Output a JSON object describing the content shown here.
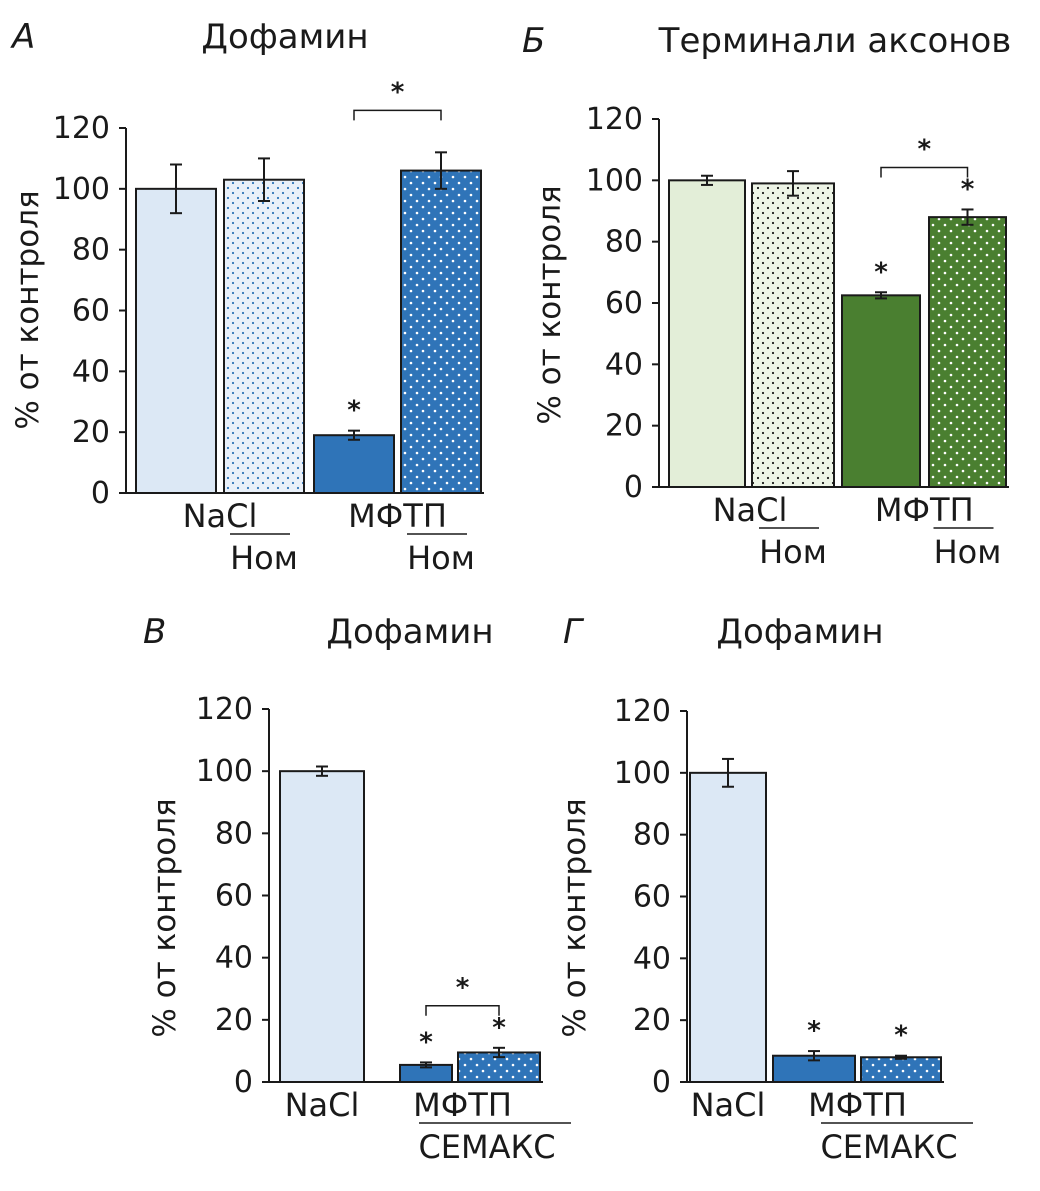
{
  "colors": {
    "axis": "#1a1a1a",
    "blue_light": "#dce8f5",
    "blue_dark": "#2f74b8",
    "green_light": "#e3eed8",
    "green_dark": "#4a7f30"
  },
  "chart_data": [
    {
      "type": "bar",
      "panel_label": "А",
      "title": "Дофамин",
      "ylabel": "% от контроля",
      "ylim": [
        0,
        120
      ],
      "yticks": [
        0,
        20,
        40,
        60,
        80,
        100,
        120
      ],
      "palette": "blue",
      "bars": [
        {
          "value": 100,
          "error": 8,
          "shade": "light",
          "pattern": false,
          "star": false
        },
        {
          "value": 103,
          "error": 7,
          "shade": "light",
          "pattern": true,
          "star": false
        },
        {
          "value": 19,
          "error": 1.5,
          "shade": "dark",
          "pattern": false,
          "star": true
        },
        {
          "value": 106,
          "error": 6,
          "shade": "dark",
          "pattern": true,
          "star": false
        }
      ],
      "brackets": [
        {
          "from": 2,
          "to": 3,
          "label": "*"
        }
      ],
      "group_labels": [
        {
          "text": "NaCl",
          "bars": [
            0,
            1
          ]
        },
        {
          "text": "МФТП",
          "bars": [
            2,
            3
          ]
        }
      ],
      "sub_labels": [
        {
          "text": "Ном",
          "bar": 1
        },
        {
          "text": "Ном",
          "bar": 3
        }
      ]
    },
    {
      "type": "bar",
      "panel_label": "Б",
      "title": "Терминали аксонов",
      "ylabel": "% от контроля",
      "ylim": [
        0,
        120
      ],
      "yticks": [
        0,
        20,
        40,
        60,
        80,
        100,
        120
      ],
      "palette": "green",
      "bars": [
        {
          "value": 100,
          "error": 1.5,
          "shade": "light",
          "pattern": false,
          "star": false
        },
        {
          "value": 99,
          "error": 4,
          "shade": "light",
          "pattern": true,
          "star": false
        },
        {
          "value": 62.5,
          "error": 1,
          "shade": "dark",
          "pattern": false,
          "star": true
        },
        {
          "value": 88,
          "error": 2.5,
          "shade": "dark",
          "pattern": true,
          "star": true
        }
      ],
      "brackets": [
        {
          "from": 2,
          "to": 3,
          "label": "*"
        }
      ],
      "group_labels": [
        {
          "text": "NaCl",
          "bars": [
            0,
            1
          ]
        },
        {
          "text": "МФТП",
          "bars": [
            2,
            3
          ]
        }
      ],
      "sub_labels": [
        {
          "text": "Ном",
          "bar": 1
        },
        {
          "text": "Ном",
          "bar": 3
        }
      ]
    },
    {
      "type": "bar",
      "panel_label": "В",
      "title": "Дофамин",
      "ylabel": "% от контроля",
      "ylim": [
        0,
        120
      ],
      "yticks": [
        0,
        20,
        40,
        60,
        80,
        100,
        120
      ],
      "palette": "blue",
      "bars": [
        {
          "value": 100,
          "error": 1.5,
          "shade": "light",
          "pattern": false,
          "star": false
        },
        {
          "value": 5.5,
          "error": 0.8,
          "shade": "dark",
          "pattern": false,
          "star": true
        },
        {
          "value": 9.5,
          "error": 1.5,
          "shade": "dark",
          "pattern": true,
          "star": true
        }
      ],
      "brackets": [
        {
          "from": 1,
          "to": 2,
          "label": "*"
        }
      ],
      "group_labels": [
        {
          "text": "NaCl",
          "bars": [
            0
          ]
        },
        {
          "text": "МФТП",
          "bars": [
            1,
            2
          ]
        }
      ],
      "sub_labels": [
        {
          "text": "СЕМАКС",
          "bar": 2
        }
      ]
    },
    {
      "type": "bar",
      "panel_label": "Г",
      "title": "Дофамин",
      "ylabel": "% от контроля",
      "ylim": [
        0,
        120
      ],
      "yticks": [
        0,
        20,
        40,
        60,
        80,
        100,
        120
      ],
      "palette": "blue",
      "bars": [
        {
          "value": 100,
          "error": 4.5,
          "shade": "light",
          "pattern": false,
          "star": false
        },
        {
          "value": 8.5,
          "error": 1.5,
          "shade": "dark",
          "pattern": false,
          "star": true
        },
        {
          "value": 8,
          "error": 0.5,
          "shade": "dark",
          "pattern": true,
          "star": true
        }
      ],
      "brackets": [],
      "group_labels": [
        {
          "text": "NaCl",
          "bars": [
            0
          ]
        },
        {
          "text": "МФТП",
          "bars": [
            1,
            2
          ]
        }
      ],
      "sub_labels": [
        {
          "text": "СЕМАКС",
          "bar": 2
        }
      ]
    }
  ]
}
